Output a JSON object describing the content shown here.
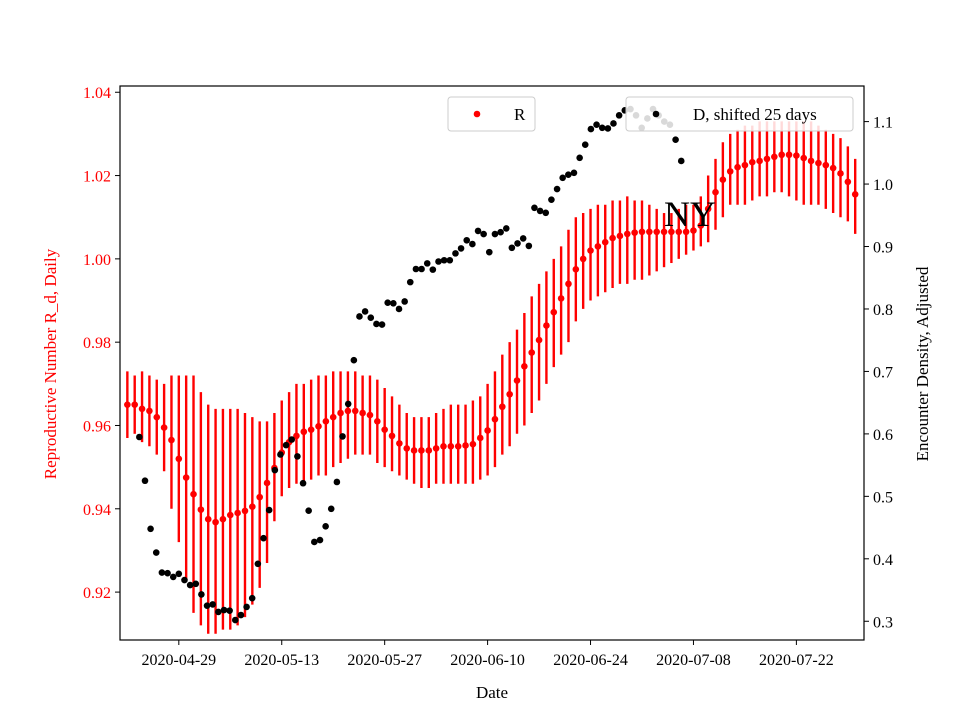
{
  "chart_data": {
    "type": "scatter",
    "title": "",
    "annotation": "NY",
    "xlabel": "Date",
    "ylabel_left": "Reproductive Number R_d, Daily",
    "ylabel_right": "Encounter Density, Adjusted",
    "x_ticks": [
      "2020-04-29",
      "2020-05-13",
      "2020-05-27",
      "2020-06-10",
      "2020-06-24",
      "2020-07-08",
      "2020-07-22"
    ],
    "y_left_ticks": [
      "0.92",
      "0.94",
      "0.96",
      "0.98",
      "1.00",
      "1.02",
      "1.04"
    ],
    "y_right_ticks": [
      "0.3",
      "0.4",
      "0.5",
      "0.6",
      "0.7",
      "0.8",
      "0.9",
      "1.0",
      "1.1"
    ],
    "y_left_range": [
      0.9085,
      1.0415
    ],
    "y_right_range": [
      0.27,
      1.157
    ],
    "grid": false,
    "x_start": "2020-04-22",
    "colors": {
      "r": "#ff0000",
      "d": "#000000",
      "left_axis": "#ff0000",
      "right_axis": "#000000"
    },
    "legend_r": {
      "label": "R",
      "placement": "upper-center"
    },
    "legend_d": {
      "label": "D, shifted 25 days",
      "placement": "upper-right"
    },
    "series_r": [
      [
        0.965,
        0.957,
        0.973
      ],
      [
        0.965,
        0.958,
        0.972
      ],
      [
        0.964,
        0.956,
        0.973
      ],
      [
        0.9635,
        0.955,
        0.972
      ],
      [
        0.962,
        0.953,
        0.971
      ],
      [
        0.9595,
        0.949,
        0.97
      ],
      [
        0.9565,
        0.94,
        0.972
      ],
      [
        0.952,
        0.932,
        0.972
      ],
      [
        0.9475,
        0.923,
        0.972
      ],
      [
        0.9435,
        0.915,
        0.972
      ],
      [
        0.9398,
        0.912,
        0.968
      ],
      [
        0.9375,
        0.91,
        0.965
      ],
      [
        0.9368,
        0.91,
        0.964
      ],
      [
        0.9375,
        0.911,
        0.964
      ],
      [
        0.9385,
        0.911,
        0.964
      ],
      [
        0.939,
        0.912,
        0.964
      ],
      [
        0.9395,
        0.914,
        0.963
      ],
      [
        0.9405,
        0.917,
        0.962
      ],
      [
        0.9428,
        0.921,
        0.961
      ],
      [
        0.9462,
        0.927,
        0.961
      ],
      [
        0.9498,
        0.937,
        0.963
      ],
      [
        0.9535,
        0.943,
        0.966
      ],
      [
        0.956,
        0.945,
        0.968
      ],
      [
        0.9575,
        0.946,
        0.97
      ],
      [
        0.9585,
        0.946,
        0.97
      ],
      [
        0.959,
        0.947,
        0.971
      ],
      [
        0.9598,
        0.948,
        0.972
      ],
      [
        0.961,
        0.948,
        0.972
      ],
      [
        0.962,
        0.95,
        0.973
      ],
      [
        0.963,
        0.951,
        0.973
      ],
      [
        0.9635,
        0.952,
        0.973
      ],
      [
        0.9635,
        0.953,
        0.973
      ],
      [
        0.963,
        0.953,
        0.972
      ],
      [
        0.9625,
        0.953,
        0.972
      ],
      [
        0.961,
        0.951,
        0.971
      ],
      [
        0.959,
        0.95,
        0.969
      ],
      [
        0.9575,
        0.949,
        0.967
      ],
      [
        0.9557,
        0.948,
        0.965
      ],
      [
        0.9545,
        0.947,
        0.963
      ],
      [
        0.954,
        0.946,
        0.962
      ],
      [
        0.954,
        0.945,
        0.962
      ],
      [
        0.954,
        0.945,
        0.962
      ],
      [
        0.9545,
        0.946,
        0.963
      ],
      [
        0.955,
        0.946,
        0.964
      ],
      [
        0.955,
        0.946,
        0.965
      ],
      [
        0.955,
        0.946,
        0.965
      ],
      [
        0.9552,
        0.946,
        0.965
      ],
      [
        0.9555,
        0.946,
        0.966
      ],
      [
        0.957,
        0.947,
        0.967
      ],
      [
        0.9588,
        0.948,
        0.97
      ],
      [
        0.9615,
        0.95,
        0.973
      ],
      [
        0.9645,
        0.953,
        0.977
      ],
      [
        0.9675,
        0.955,
        0.98
      ],
      [
        0.9708,
        0.958,
        0.983
      ],
      [
        0.9742,
        0.96,
        0.987
      ],
      [
        0.9775,
        0.963,
        0.991
      ],
      [
        0.9805,
        0.966,
        0.994
      ],
      [
        0.984,
        0.97,
        0.997
      ],
      [
        0.9872,
        0.974,
        1.0
      ],
      [
        0.9905,
        0.977,
        1.003
      ],
      [
        0.994,
        0.98,
        1.007
      ],
      [
        0.9975,
        0.985,
        1.01
      ],
      [
        1.0,
        0.988,
        1.011
      ],
      [
        1.002,
        0.99,
        1.012
      ],
      [
        1.003,
        0.991,
        1.013
      ],
      [
        1.004,
        0.992,
        1.013
      ],
      [
        1.005,
        0.993,
        1.014
      ],
      [
        1.0055,
        0.994,
        1.014
      ],
      [
        1.006,
        0.994,
        1.015
      ],
      [
        1.0063,
        0.995,
        1.014
      ],
      [
        1.0065,
        0.995,
        1.014
      ],
      [
        1.0065,
        0.996,
        1.013
      ],
      [
        1.0065,
        0.997,
        1.012
      ],
      [
        1.0065,
        0.998,
        1.011
      ],
      [
        1.0065,
        0.999,
        1.011
      ],
      [
        1.0065,
        1.0,
        1.012
      ],
      [
        1.0065,
        1.001,
        1.013
      ],
      [
        1.0068,
        1.002,
        1.013
      ],
      [
        1.008,
        1.003,
        1.015
      ],
      [
        1.012,
        1.004,
        1.02
      ],
      [
        1.016,
        1.007,
        1.024
      ],
      [
        1.019,
        1.01,
        1.028
      ],
      [
        1.021,
        1.013,
        1.03
      ],
      [
        1.022,
        1.013,
        1.031
      ],
      [
        1.0225,
        1.013,
        1.032
      ],
      [
        1.0232,
        1.014,
        1.032
      ],
      [
        1.0235,
        1.015,
        1.033
      ],
      [
        1.024,
        1.015,
        1.033
      ],
      [
        1.0245,
        1.016,
        1.033
      ],
      [
        1.025,
        1.016,
        1.033
      ],
      [
        1.025,
        1.015,
        1.033
      ],
      [
        1.0248,
        1.014,
        1.033
      ],
      [
        1.0242,
        1.013,
        1.033
      ],
      [
        1.0235,
        1.013,
        1.033
      ],
      [
        1.023,
        1.013,
        1.032
      ],
      [
        1.0225,
        1.012,
        1.031
      ],
      [
        1.0218,
        1.011,
        1.03
      ],
      [
        1.0205,
        1.01,
        1.029
      ],
      [
        1.0185,
        1.009,
        1.027
      ],
      [
        1.0155,
        1.006,
        1.024
      ]
    ],
    "series_d": [
      [
        1.63,
        0.595
      ],
      [
        2.4,
        0.525
      ],
      [
        3.16,
        0.448
      ],
      [
        3.93,
        0.41
      ],
      [
        4.7,
        0.378
      ],
      [
        5.47,
        0.377
      ],
      [
        6.24,
        0.371
      ],
      [
        7.0,
        0.376
      ],
      [
        7.77,
        0.366
      ],
      [
        8.54,
        0.358
      ],
      [
        9.31,
        0.36
      ],
      [
        10.07,
        0.343
      ],
      [
        10.84,
        0.325
      ],
      [
        11.61,
        0.327
      ],
      [
        12.38,
        0.315
      ],
      [
        13.15,
        0.318
      ],
      [
        13.91,
        0.317
      ],
      [
        14.68,
        0.302
      ],
      [
        15.45,
        0.31
      ],
      [
        16.22,
        0.323
      ],
      [
        16.98,
        0.337
      ],
      [
        17.75,
        0.392
      ],
      [
        18.52,
        0.433
      ],
      [
        19.29,
        0.478
      ],
      [
        20.06,
        0.542
      ],
      [
        20.82,
        0.567
      ],
      [
        21.59,
        0.582
      ],
      [
        22.36,
        0.591
      ],
      [
        23.13,
        0.564
      ],
      [
        23.9,
        0.521
      ],
      [
        24.66,
        0.477
      ],
      [
        25.43,
        0.427
      ],
      [
        26.2,
        0.43
      ],
      [
        26.97,
        0.452
      ],
      [
        27.73,
        0.48
      ],
      [
        28.5,
        0.523
      ],
      [
        29.27,
        0.596
      ],
      [
        30.04,
        0.648
      ],
      [
        30.81,
        0.718
      ],
      [
        31.57,
        0.788
      ],
      [
        32.34,
        0.796
      ],
      [
        33.11,
        0.786
      ],
      [
        33.88,
        0.776
      ],
      [
        34.64,
        0.775
      ],
      [
        35.41,
        0.81
      ],
      [
        36.18,
        0.809
      ],
      [
        36.95,
        0.8
      ],
      [
        37.72,
        0.812
      ],
      [
        38.48,
        0.843
      ],
      [
        39.25,
        0.864
      ],
      [
        40.02,
        0.864
      ],
      [
        40.79,
        0.873
      ],
      [
        41.55,
        0.863
      ],
      [
        42.32,
        0.876
      ],
      [
        43.09,
        0.878
      ],
      [
        43.86,
        0.878
      ],
      [
        44.63,
        0.889
      ],
      [
        45.39,
        0.897
      ],
      [
        46.16,
        0.91
      ],
      [
        46.93,
        0.904
      ],
      [
        47.7,
        0.925
      ],
      [
        48.46,
        0.92
      ],
      [
        49.23,
        0.891
      ],
      [
        50.0,
        0.92
      ],
      [
        50.77,
        0.923
      ],
      [
        51.54,
        0.929
      ],
      [
        52.3,
        0.898
      ],
      [
        53.07,
        0.905
      ],
      [
        53.84,
        0.913
      ],
      [
        54.61,
        0.901
      ],
      [
        55.37,
        0.962
      ],
      [
        56.14,
        0.957
      ],
      [
        56.91,
        0.954
      ],
      [
        57.68,
        0.975
      ],
      [
        58.45,
        0.992
      ],
      [
        59.21,
        1.01
      ],
      [
        59.98,
        1.015
      ],
      [
        60.75,
        1.018
      ],
      [
        61.52,
        1.042
      ],
      [
        62.28,
        1.063
      ],
      [
        63.05,
        1.088
      ],
      [
        63.82,
        1.095
      ],
      [
        64.59,
        1.09
      ],
      [
        65.36,
        1.089
      ],
      [
        66.12,
        1.097
      ],
      [
        66.89,
        1.11
      ],
      [
        67.66,
        1.118
      ],
      [
        68.43,
        1.12
      ],
      [
        69.19,
        1.11
      ],
      [
        69.96,
        1.09
      ],
      [
        70.73,
        1.105
      ],
      [
        71.5,
        1.12
      ],
      [
        72.27,
        1.11
      ],
      [
        73.03,
        1.1
      ],
      [
        73.8,
        1.095
      ],
      [
        74.57,
        1.071
      ],
      [
        75.34,
        1.037
      ]
    ]
  }
}
